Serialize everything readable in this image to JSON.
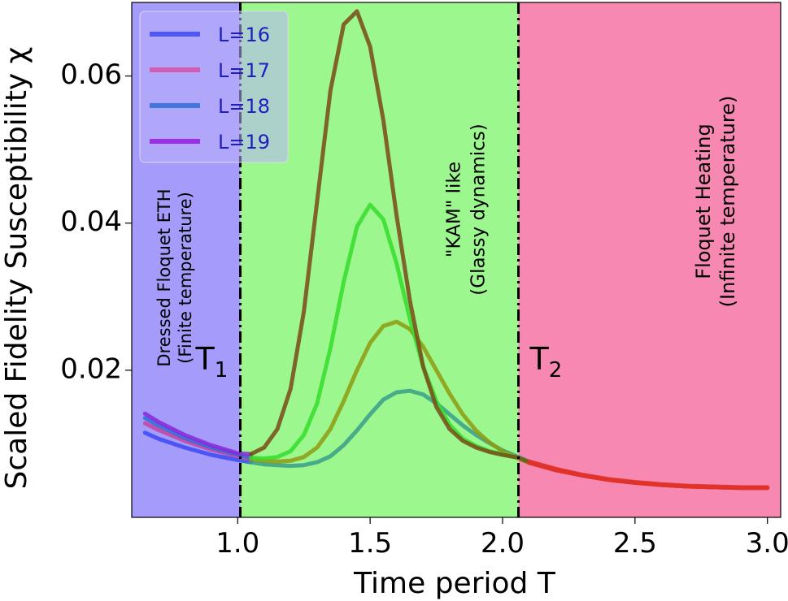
{
  "chart_data": {
    "type": "line",
    "xlabel": "Time period T",
    "ylabel": "Scaled Fidelity Susceptibility χ",
    "xlim": [
      0.6,
      3.05
    ],
    "ylim": [
      0.0,
      0.07
    ],
    "xticks": [
      1.0,
      1.5,
      2.0,
      2.5,
      3.0
    ],
    "xtick_labels": [
      "1.0",
      "1.5",
      "2.0",
      "2.5",
      "3.0"
    ],
    "yticks": [
      0.02,
      0.04,
      0.06
    ],
    "ytick_labels": [
      "0.02",
      "0.04",
      "0.06"
    ],
    "grid": false,
    "legend_position": "top-left",
    "thresholds": [
      {
        "label": "T",
        "sub": "1",
        "x": 1.01
      },
      {
        "label": "T",
        "sub": "2",
        "x": 2.06
      }
    ],
    "regions": [
      {
        "x0": 0.6,
        "x1": 1.01,
        "color": "#a59bfb",
        "lines": [
          "Dressed Floquet ETH",
          "(Finite temperature)"
        ]
      },
      {
        "x0": 1.01,
        "x1": 2.06,
        "color": "#9cf78e",
        "lines": [
          "\"KAM\" like",
          "(Glassy dynamics)"
        ]
      },
      {
        "x0": 2.06,
        "x1": 3.05,
        "color": "#f788b2",
        "lines": [
          "Floquet Heating",
          "(Infinite temperature)"
        ]
      }
    ],
    "series": [
      {
        "name": "L=16",
        "legend_color": "#3b49f5",
        "colors": [
          "#3b49f5",
          "#3a9e8a",
          "#e0322a"
        ],
        "x": [
          0.65,
          0.7,
          0.8,
          0.9,
          1.0,
          1.05,
          1.1,
          1.15,
          1.2,
          1.25,
          1.3,
          1.35,
          1.4,
          1.45,
          1.5,
          1.55,
          1.6,
          1.65,
          1.7,
          1.75,
          1.8,
          1.85,
          1.9,
          1.95,
          2.0,
          2.06,
          2.1,
          2.2,
          2.3,
          2.4,
          2.5,
          2.6,
          2.7,
          2.8,
          2.9,
          3.0
        ],
        "y": [
          0.0115,
          0.0107,
          0.0095,
          0.0085,
          0.0078,
          0.0075,
          0.0072,
          0.0071,
          0.007,
          0.0071,
          0.0075,
          0.0083,
          0.0098,
          0.0118,
          0.014,
          0.016,
          0.017,
          0.0172,
          0.0167,
          0.0155,
          0.014,
          0.0125,
          0.0112,
          0.0101,
          0.0091,
          0.0082,
          0.0076,
          0.0066,
          0.0058,
          0.0052,
          0.0048,
          0.0045,
          0.0043,
          0.0042,
          0.0041,
          0.0041
        ]
      },
      {
        "name": "L=17",
        "legend_color": "#d94fa6",
        "colors": [
          "#c8429e",
          "#8f9a10",
          "#e0322a"
        ],
        "x": [
          0.65,
          0.7,
          0.8,
          0.9,
          1.0,
          1.05,
          1.1,
          1.15,
          1.2,
          1.25,
          1.3,
          1.35,
          1.4,
          1.45,
          1.5,
          1.55,
          1.6,
          1.65,
          1.7,
          1.75,
          1.8,
          1.85,
          1.9,
          1.95,
          2.0,
          2.06,
          2.1,
          2.2,
          2.3,
          2.4,
          2.5,
          2.6,
          2.7,
          2.8,
          2.9,
          3.0
        ],
        "y": [
          0.0128,
          0.0119,
          0.0104,
          0.0092,
          0.0083,
          0.0079,
          0.0077,
          0.0076,
          0.0077,
          0.0082,
          0.0095,
          0.012,
          0.0158,
          0.02,
          0.0237,
          0.026,
          0.0266,
          0.0256,
          0.0232,
          0.02,
          0.0168,
          0.014,
          0.0118,
          0.0102,
          0.009,
          0.008,
          0.0074,
          0.0064,
          0.0057,
          0.0051,
          0.0047,
          0.0044,
          0.0042,
          0.0041,
          0.004,
          0.004
        ]
      },
      {
        "name": "L=18",
        "legend_color": "#2f6dd6",
        "colors": [
          "#2f6dd6",
          "#35dd2c",
          "#e0322a"
        ],
        "x": [
          0.65,
          0.7,
          0.8,
          0.9,
          1.0,
          1.05,
          1.1,
          1.15,
          1.2,
          1.25,
          1.3,
          1.35,
          1.4,
          1.45,
          1.5,
          1.55,
          1.6,
          1.65,
          1.7,
          1.75,
          1.8,
          1.85,
          1.9,
          1.95,
          2.0,
          2.06,
          2.1,
          2.2,
          2.3,
          2.4,
          2.5,
          2.6,
          2.7,
          2.8,
          2.9,
          3.0
        ],
        "y": [
          0.0135,
          0.0125,
          0.0108,
          0.0095,
          0.0085,
          0.0081,
          0.008,
          0.0082,
          0.009,
          0.0112,
          0.0155,
          0.023,
          0.032,
          0.0395,
          0.0425,
          0.0405,
          0.0345,
          0.027,
          0.0205,
          0.0158,
          0.0126,
          0.0107,
          0.0097,
          0.009,
          0.0086,
          0.0081,
          0.0075,
          0.0065,
          0.0057,
          0.0051,
          0.0047,
          0.0044,
          0.0042,
          0.0041,
          0.004,
          0.004
        ]
      },
      {
        "name": "L=19",
        "legend_color": "#9a1ae3",
        "colors": [
          "#8a25d9",
          "#7a4a18",
          "#e0322a"
        ],
        "x": [
          0.65,
          0.7,
          0.8,
          0.9,
          1.0,
          1.05,
          1.1,
          1.15,
          1.2,
          1.25,
          1.3,
          1.35,
          1.4,
          1.45,
          1.5,
          1.55,
          1.6,
          1.65,
          1.7,
          1.75,
          1.8,
          1.85,
          1.9,
          1.95,
          2.0,
          2.06,
          2.1,
          2.2,
          2.3,
          2.4,
          2.5,
          2.6,
          2.7,
          2.8,
          2.9,
          3.0
        ],
        "y": [
          0.0141,
          0.013,
          0.0112,
          0.0098,
          0.0087,
          0.0086,
          0.0095,
          0.012,
          0.0175,
          0.028,
          0.043,
          0.058,
          0.067,
          0.0688,
          0.064,
          0.054,
          0.041,
          0.0295,
          0.0205,
          0.015,
          0.012,
          0.0104,
          0.0095,
          0.0089,
          0.0085,
          0.0081,
          0.0075,
          0.0065,
          0.0057,
          0.0051,
          0.0047,
          0.0044,
          0.0042,
          0.0041,
          0.004,
          0.004
        ]
      }
    ]
  }
}
